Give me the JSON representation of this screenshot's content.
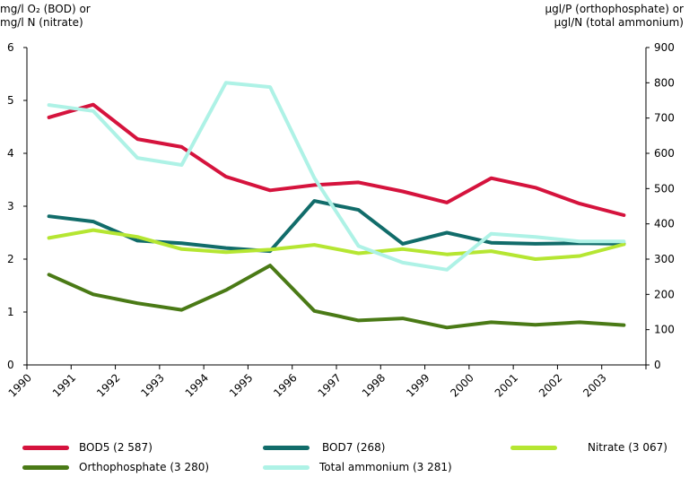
{
  "left_axis_title": {
    "line1": "mg/l O₂ (BOD) or",
    "line2": "mg/l N (nitrate)"
  },
  "right_axis_title": {
    "line1": "µgl/P (orthophosphate) or",
    "line2": "µgl/N (total ammonium)"
  },
  "legend": [
    {
      "label": "BOD5 (2 587)",
      "color": "#d5133d"
    },
    {
      "label": "BOD7 (268)",
      "color": "#116c6a"
    },
    {
      "label": "Nitrate (3 067)",
      "color": "#b5e632"
    },
    {
      "label": "Orthophosphate (3 280)",
      "color": "#4a7a16"
    },
    {
      "label": "Total ammonium (3 281)",
      "color": "#aef2e6"
    }
  ],
  "chart_data": {
    "type": "line",
    "x_ticks": [
      "1990",
      "1991",
      "1992",
      "1993",
      "1994",
      "1995",
      "1996",
      "1997",
      "1998",
      "1999",
      "2000",
      "2001",
      "2002",
      "2003"
    ],
    "x": [
      1990.5,
      1991.5,
      1992.5,
      1993.5,
      1994.5,
      1995.5,
      1996.5,
      1997.5,
      1998.5,
      1999.5,
      2000.5,
      2001.5,
      2002.5,
      2003.5
    ],
    "xlim": [
      1990,
      2004
    ],
    "ylim_left": [
      0,
      6
    ],
    "y_ticks_left": [
      "0",
      "1",
      "2",
      "3",
      "4",
      "5",
      "6"
    ],
    "ylim_right": [
      0,
      900
    ],
    "y_ticks_right": [
      "0",
      "100",
      "200",
      "300",
      "400",
      "500",
      "600",
      "700",
      "800",
      "900"
    ],
    "grid": false,
    "legend_position": "bottom",
    "series": [
      {
        "name": "BOD5 (2 587)",
        "axis": "left",
        "color": "#d5133d",
        "values": [
          4.68,
          4.92,
          4.27,
          4.12,
          3.56,
          3.3,
          3.4,
          3.45,
          3.28,
          3.07,
          3.53,
          3.35,
          3.05,
          2.83
        ]
      },
      {
        "name": "BOD7 (268)",
        "axis": "left",
        "color": "#116c6a",
        "values": [
          2.81,
          2.71,
          2.35,
          2.3,
          2.21,
          2.15,
          3.1,
          2.93,
          2.29,
          2.5,
          2.31,
          2.29,
          2.3,
          2.29
        ]
      },
      {
        "name": "Nitrate (3 067)",
        "axis": "left",
        "color": "#b5e632",
        "values": [
          2.4,
          2.55,
          2.42,
          2.19,
          2.13,
          2.18,
          2.27,
          2.11,
          2.19,
          2.09,
          2.15,
          2.0,
          2.06,
          2.28
        ]
      },
      {
        "name": "Orthophosphate (3 280)",
        "axis": "right",
        "color": "#4a7a16",
        "values": [
          256,
          200,
          175,
          156,
          212,
          282,
          153,
          126,
          132,
          106,
          121,
          114,
          121,
          113
        ]
      },
      {
        "name": "Total ammonium (3 281)",
        "axis": "right",
        "color": "#aef2e6",
        "values": [
          737,
          720,
          587,
          567,
          800,
          788,
          530,
          337,
          290,
          270,
          372,
          363,
          350,
          350
        ]
      }
    ]
  }
}
